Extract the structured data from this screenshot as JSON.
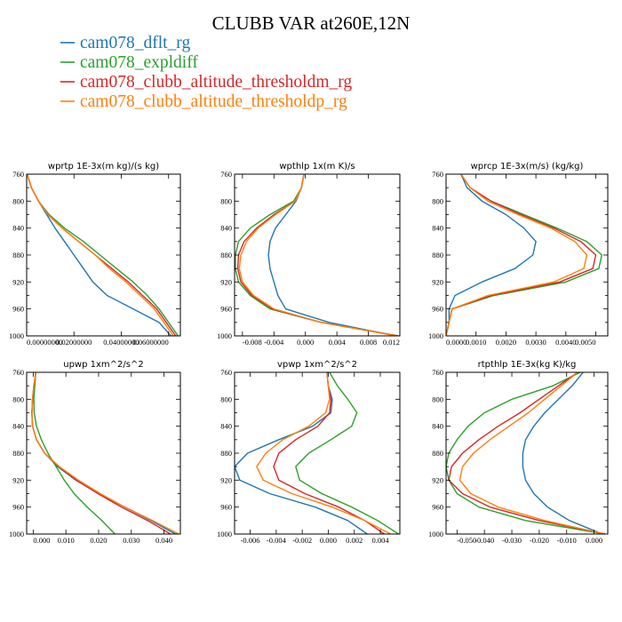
{
  "title": "CLUBB VAR at260E,12N",
  "legend": [
    {
      "name": "cam078_dflt_rg",
      "color": "#1f77b4"
    },
    {
      "name": "cam078_expldiff",
      "color": "#2ca02c"
    },
    {
      "name": "cam078_clubb_altitude_thresholdm_rg",
      "color": "#d62728"
    },
    {
      "name": "cam078_clubb_altitude_thresholdp_rg",
      "color": "#ff7f0e"
    }
  ],
  "chart_data": [
    {
      "type": "line",
      "title": "wprtp  1E-3x(m kg)/(s kg)",
      "xlim": [
        0,
        0.065
      ],
      "ylim": [
        760,
        1000
      ],
      "y_reversed": true,
      "xticks": [
        0,
        0.02,
        0.04,
        0.06
      ],
      "xtick_labels": [
        "0.00000000",
        "0.02000000",
        "0.04000000",
        "0.06000000"
      ],
      "yticks": [
        760,
        800,
        840,
        880,
        920,
        960,
        1000
      ],
      "y": [
        760,
        780,
        800,
        820,
        840,
        860,
        880,
        900,
        920,
        940,
        960,
        980,
        1000
      ],
      "series": [
        {
          "name": "cam078_dflt_rg",
          "values": [
            0.0002,
            0.002,
            0.005,
            0.0085,
            0.012,
            0.016,
            0.02,
            0.024,
            0.028,
            0.034,
            0.045,
            0.056,
            0.061
          ]
        },
        {
          "name": "cam078_expldiff",
          "values": [
            0.0002,
            0.002,
            0.005,
            0.0095,
            0.016,
            0.024,
            0.031,
            0.038,
            0.045,
            0.051,
            0.056,
            0.06,
            0.064
          ]
        },
        {
          "name": "cam078_clubb_altitude_thresholdm_rg",
          "values": [
            0.0002,
            0.002,
            0.005,
            0.009,
            0.015,
            0.022,
            0.029,
            0.036,
            0.043,
            0.049,
            0.055,
            0.059,
            0.063
          ]
        },
        {
          "name": "cam078_clubb_altitude_thresholdp_rg",
          "values": [
            0.0002,
            0.002,
            0.005,
            0.009,
            0.015,
            0.022,
            0.029,
            0.035,
            0.042,
            0.048,
            0.054,
            0.058,
            0.062
          ]
        }
      ]
    },
    {
      "type": "line",
      "title": "wpthlp  1x(m K)/s",
      "xlim": [
        -0.009,
        0.012
      ],
      "ylim": [
        760,
        1000
      ],
      "y_reversed": true,
      "xticks": [
        -0.008,
        -0.004,
        0,
        0.004,
        0.008,
        0.012
      ],
      "xtick_labels": [
        "-0.008",
        "-0.004",
        "0.000",
        "0.004",
        "0.008",
        "0.012"
      ],
      "yticks": [
        760,
        800,
        840,
        880,
        920,
        960,
        1000
      ],
      "y": [
        760,
        780,
        800,
        820,
        840,
        860,
        880,
        900,
        920,
        940,
        960,
        980,
        1000
      ],
      "series": [
        {
          "name": "cam078_dflt_rg",
          "values": [
            -0.0002,
            -0.0005,
            -0.0012,
            -0.0025,
            -0.0038,
            -0.0045,
            -0.0047,
            -0.0045,
            -0.004,
            -0.0035,
            -0.0025,
            0.003,
            0.0115
          ]
        },
        {
          "name": "cam078_expldiff",
          "values": [
            -0.0002,
            -0.0005,
            -0.0015,
            -0.0045,
            -0.007,
            -0.0085,
            -0.0089,
            -0.0089,
            -0.0085,
            -0.007,
            -0.0045,
            0.002,
            0.0118
          ]
        },
        {
          "name": "cam078_clubb_altitude_thresholdm_rg",
          "values": [
            -0.0002,
            -0.0005,
            -0.0013,
            -0.004,
            -0.0062,
            -0.0078,
            -0.0085,
            -0.0086,
            -0.0082,
            -0.0068,
            -0.0042,
            0.002,
            0.0117
          ]
        },
        {
          "name": "cam078_clubb_altitude_thresholdp_rg",
          "values": [
            -0.0002,
            -0.0005,
            -0.0013,
            -0.0038,
            -0.006,
            -0.0075,
            -0.0082,
            -0.0084,
            -0.008,
            -0.0066,
            -0.004,
            0.002,
            0.0116
          ]
        }
      ]
    },
    {
      "type": "line",
      "title": "wprcp  1E-3x(m/s) (kg/kg)",
      "xlim": [
        0,
        0.0054
      ],
      "ylim": [
        760,
        1000
      ],
      "y_reversed": true,
      "xticks": [
        0,
        0.001,
        0.002,
        0.003,
        0.004,
        0.005
      ],
      "xtick_labels": [
        "0.0000",
        "0.0010",
        "0.0020",
        "0.0030",
        "0.0040",
        "0.0050"
      ],
      "yticks": [
        760,
        800,
        840,
        880,
        920,
        960,
        1000
      ],
      "y": [
        760,
        780,
        800,
        820,
        840,
        860,
        880,
        900,
        920,
        940,
        960,
        980,
        1000
      ],
      "series": [
        {
          "name": "cam078_dflt_rg",
          "values": [
            0.0005,
            0.0007,
            0.0012,
            0.002,
            0.0026,
            0.003,
            0.0029,
            0.0023,
            0.0012,
            0.0003,
            0.0001,
            0.0001,
            0
          ]
        },
        {
          "name": "cam078_expldiff",
          "values": [
            0.0005,
            0.0008,
            0.0015,
            0.0026,
            0.0037,
            0.0047,
            0.0052,
            0.0051,
            0.004,
            0.0016,
            0.0002,
            0.0001,
            0
          ]
        },
        {
          "name": "cam078_clubb_altitude_thresholdm_rg",
          "values": [
            0.0005,
            0.0008,
            0.0015,
            0.0025,
            0.0036,
            0.0045,
            0.005,
            0.0049,
            0.0038,
            0.0015,
            0.0002,
            0.0001,
            0
          ]
        },
        {
          "name": "cam078_clubb_altitude_thresholdp_rg",
          "values": [
            0.0005,
            0.0008,
            0.0014,
            0.0024,
            0.0035,
            0.0043,
            0.0047,
            0.0046,
            0.0036,
            0.0014,
            0.0002,
            0.0001,
            0
          ]
        }
      ]
    },
    {
      "type": "line",
      "title": "upwp  1xm^2/s^2",
      "xlim": [
        -0.002,
        0.045
      ],
      "ylim": [
        760,
        1000
      ],
      "y_reversed": true,
      "xticks": [
        0,
        0.01,
        0.02,
        0.03,
        0.04
      ],
      "xtick_labels": [
        "0.000",
        "0.010",
        "0.020",
        "0.030",
        "0.040"
      ],
      "yticks": [
        760,
        800,
        840,
        880,
        920,
        960,
        1000
      ],
      "y": [
        760,
        780,
        800,
        820,
        840,
        860,
        880,
        900,
        920,
        940,
        960,
        980,
        1000
      ],
      "series": [
        {
          "name": "cam078_dflt_rg",
          "values": [
            0.0008,
            0.0002,
            -0.0002,
            -0.0004,
            -0.0002,
            0.001,
            0.0035,
            0.0075,
            0.013,
            0.02,
            0.028,
            0.036,
            0.0435
          ]
        },
        {
          "name": "cam078_expldiff",
          "values": [
            0.0008,
            0.0005,
            0.0002,
            0.0003,
            0.001,
            0.0025,
            0.0045,
            0.007,
            0.0095,
            0.0125,
            0.0165,
            0.021,
            0.025
          ]
        },
        {
          "name": "cam078_clubb_altitude_thresholdm_rg",
          "values": [
            0.0008,
            0.0002,
            -0.0002,
            -0.0004,
            -0.0002,
            0.001,
            0.0035,
            0.0078,
            0.0132,
            0.0198,
            0.027,
            0.035,
            0.042
          ]
        },
        {
          "name": "cam078_clubb_altitude_thresholdp_rg",
          "values": [
            0.0008,
            0.0002,
            -0.0002,
            -0.0004,
            -0.0002,
            0.001,
            0.0035,
            0.008,
            0.0138,
            0.0205,
            0.028,
            0.0365,
            0.0445
          ]
        }
      ]
    },
    {
      "type": "line",
      "title": "vpwp  1xm^2/s^2",
      "xlim": [
        -0.0072,
        0.0055
      ],
      "ylim": [
        760,
        1000
      ],
      "y_reversed": true,
      "xticks": [
        -0.006,
        -0.004,
        -0.002,
        0,
        0.002,
        0.004
      ],
      "xtick_labels": [
        "-0.006",
        "-0.004",
        "-0.002",
        "0.000",
        "0.002",
        "0.004"
      ],
      "yticks": [
        760,
        800,
        840,
        880,
        920,
        960,
        1000
      ],
      "y": [
        760,
        780,
        800,
        820,
        840,
        860,
        880,
        900,
        920,
        940,
        960,
        980,
        1000
      ],
      "series": [
        {
          "name": "cam078_dflt_rg",
          "values": [
            -0.0001,
            0,
            0.0003,
            0.0002,
            -0.0012,
            -0.0038,
            -0.0062,
            -0.0072,
            -0.0068,
            -0.0045,
            -0.001,
            0.0015,
            0.003
          ]
        },
        {
          "name": "cam078_expldiff",
          "values": [
            0.0001,
            0.0007,
            0.0015,
            0.0022,
            0.0018,
            0.0002,
            -0.0015,
            -0.0025,
            -0.0022,
            -0.0005,
            0.0018,
            0.0038,
            0.0054
          ]
        },
        {
          "name": "cam078_clubb_altitude_thresholdm_rg",
          "values": [
            -0.0001,
            0,
            0.0002,
            0.0001,
            -0.0008,
            -0.0025,
            -0.0038,
            -0.0042,
            -0.0038,
            -0.0018,
            0.0008,
            0.0028,
            0.0043
          ]
        },
        {
          "name": "cam078_clubb_altitude_thresholdp_rg",
          "values": [
            -0.0001,
            0,
            0.0001,
            -0.0002,
            -0.0015,
            -0.0035,
            -0.0048,
            -0.0055,
            -0.005,
            -0.0028,
            0.0003,
            0.0028,
            0.0048
          ]
        }
      ]
    },
    {
      "type": "line",
      "title": "rtpthlp  1E-3x(kg K)/kg",
      "xlim": [
        -0.054,
        0.005
      ],
      "ylim": [
        760,
        1000
      ],
      "y_reversed": true,
      "xticks": [
        -0.05,
        -0.04,
        -0.03,
        -0.02,
        -0.01,
        0
      ],
      "xtick_labels": [
        "-0.050",
        "-0.040",
        "-0.030",
        "-0.020",
        "-0.010",
        "0.000"
      ],
      "yticks": [
        760,
        800,
        840,
        880,
        920,
        960,
        1000
      ],
      "y": [
        760,
        780,
        800,
        820,
        840,
        860,
        880,
        900,
        920,
        940,
        960,
        980,
        1000
      ],
      "series": [
        {
          "name": "cam078_dflt_rg",
          "values": [
            -0.004,
            -0.008,
            -0.013,
            -0.018,
            -0.022,
            -0.025,
            -0.026,
            -0.026,
            -0.025,
            -0.022,
            -0.017,
            -0.009,
            0.003
          ]
        },
        {
          "name": "cam078_expldiff",
          "values": [
            -0.005,
            -0.015,
            -0.03,
            -0.04,
            -0.046,
            -0.05,
            -0.053,
            -0.054,
            -0.053,
            -0.05,
            -0.042,
            -0.025,
            0.004
          ]
        },
        {
          "name": "cam078_clubb_altitude_thresholdm_rg",
          "values": [
            -0.006,
            -0.013,
            -0.02,
            -0.027,
            -0.035,
            -0.042,
            -0.048,
            -0.052,
            -0.053,
            -0.048,
            -0.038,
            -0.02,
            0.004
          ]
        },
        {
          "name": "cam078_clubb_altitude_thresholdp_rg",
          "values": [
            -0.006,
            -0.012,
            -0.018,
            -0.024,
            -0.031,
            -0.038,
            -0.044,
            -0.048,
            -0.049,
            -0.045,
            -0.035,
            -0.018,
            0.004
          ]
        }
      ]
    }
  ]
}
